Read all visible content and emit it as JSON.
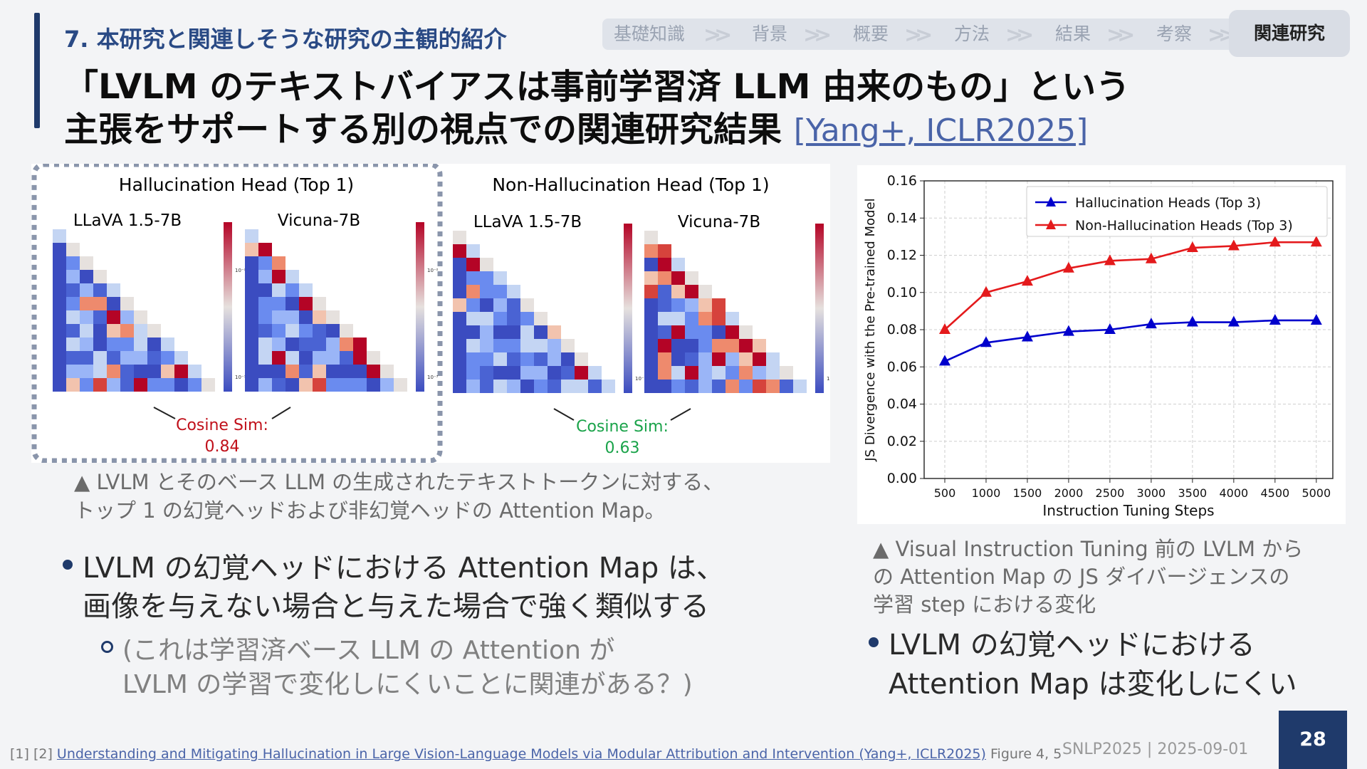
{
  "header": {
    "section_title": "7. 本研究と関連しそうな研究の主観的紹介",
    "title_line1": "「LVLM のテキストバイアスは事前学習済 LLM 由来のもの」という",
    "title_line2": "主張をサポートする別の視点での関連研究結果",
    "citation": "[Yang+, ICLR2025]"
  },
  "nav": {
    "steps": [
      "基礎知識",
      "背景",
      "概要",
      "方法",
      "結果",
      "考察"
    ],
    "active": "関連研究"
  },
  "colors": {
    "navy": "#1f3a6b",
    "red_series": "#e41a1c",
    "blue_series": "#0000cc",
    "green_text": "#1aa34a",
    "dark_red_text": "#c0101a"
  },
  "left_figure": {
    "panels": [
      {
        "title": "Hallucination Head (Top 1)",
        "models": [
          "LLaVA 1.5-7B",
          "Vicuna-7B"
        ],
        "sim_label": "Cosine Sim:",
        "sim_value": "0.84"
      },
      {
        "title": "Non-Hallucination Head (Top 1)",
        "models": [
          "LLaVA 1.5-7B",
          "Vicuna-7B"
        ],
        "sim_label": "Cosine Sim:",
        "sim_value": "0.63"
      }
    ],
    "colorbar": {
      "top": "10⁻²",
      "bottom": "10⁻³"
    },
    "caption_line1": "▲ LVLM とそのベース LLM の生成されたテキストトークンに対する、",
    "caption_line2": "トップ 1 の幻覚ヘッドおよび非幻覚ヘッドの Attention Map。"
  },
  "chart_data": {
    "type": "line",
    "x": [
      500,
      1000,
      1500,
      2000,
      2500,
      3000,
      3500,
      4000,
      4500,
      5000
    ],
    "series": [
      {
        "name": "Hallucination Heads (Top 3)",
        "color": "#0000cc",
        "values": [
          0.063,
          0.073,
          0.076,
          0.079,
          0.08,
          0.083,
          0.084,
          0.084,
          0.085,
          0.085
        ]
      },
      {
        "name": "Non-Hallucination Heads (Top 3)",
        "color": "#e41a1c",
        "values": [
          0.08,
          0.1,
          0.106,
          0.113,
          0.117,
          0.118,
          0.124,
          0.125,
          0.127,
          0.127
        ]
      }
    ],
    "xlabel": "Instruction Tuning Steps",
    "ylabel": "JS Divergence with the Pre-trained Model",
    "xlim": [
      250,
      5200
    ],
    "ylim": [
      0,
      0.16
    ],
    "yticks": [
      "0.00",
      "0.02",
      "0.04",
      "0.06",
      "0.08",
      "0.10",
      "0.12",
      "0.14",
      "0.16"
    ],
    "xticks": [
      "500",
      "1000",
      "1500",
      "2000",
      "2500",
      "3000",
      "3500",
      "4000",
      "4500",
      "5000"
    ],
    "grid": true,
    "legend_position": "top-right"
  },
  "right_caption": {
    "line1": "▲ Visual Instruction Tuning 前の LVLM から",
    "line2": "の Attention Map の JS ダイバージェンスの",
    "line3": "学習 step における変化"
  },
  "bullets": {
    "left_line1": "LVLM の幻覚ヘッドにおける Attention Map は、",
    "left_line2": "画像を与えない場合と与えた場合で強く類似する",
    "sub_line1": "(これは学習済ベース LLM の Attention が",
    "sub_line2": "LVLM の学習で変化しにくいことに関連がある？)",
    "right_line1": "LVLM の幻覚ヘッドにおける",
    "right_line2": "Attention Map は変化しにくい"
  },
  "footer": {
    "refs": "[1] [2]",
    "paper": "Understanding and Mitigating Hallucination in Large Vision-Language Models via Modular Attribution and Intervention (Yang+, ICLR2025)",
    "fig": "Figure 4, 5",
    "meta": "SNLP2025 | 2025-09-01",
    "page": "28"
  }
}
